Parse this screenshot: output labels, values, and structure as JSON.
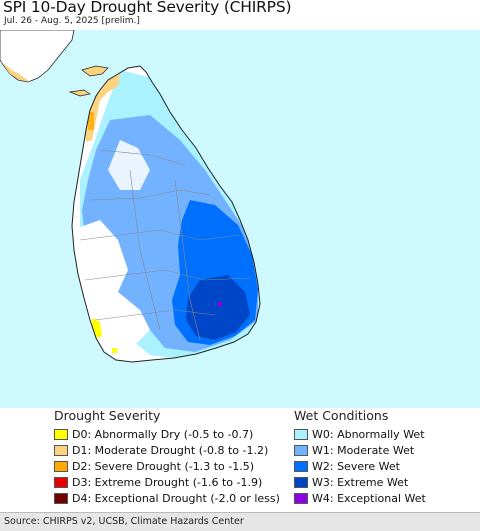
{
  "header": {
    "title": "SPI 10-Day Drought Severity (CHIRPS)",
    "subtitle": "Jul. 26 - Aug. 5, 2025 [prelim.]"
  },
  "map": {
    "region": "Sri Lanka",
    "colors": {
      "water": "#cdf9ff",
      "land_normal": "#ffffff",
      "border": "#333333",
      "district_line": "#888888"
    }
  },
  "legend": {
    "drought": {
      "heading": "Drought Severity",
      "items": [
        {
          "label": "D0: Abnormally Dry (-0.5 to -0.7)",
          "color": "#ffff00"
        },
        {
          "label": "D1: Moderate Drought (-0.8 to -1.2)",
          "color": "#fcd37f"
        },
        {
          "label": "D2: Severe Drought (-1.3 to -1.5)",
          "color": "#ffaa00"
        },
        {
          "label": "D3: Extreme Drought (-1.6 to -1.9)",
          "color": "#e60000"
        },
        {
          "label": "D4: Exceptional Drought (-2.0 or less)",
          "color": "#730000"
        }
      ]
    },
    "wet": {
      "heading": "Wet Conditions",
      "items": [
        {
          "label": "W0: Abnormally Wet",
          "color": "#aaf2ff"
        },
        {
          "label": "W1: Moderate Wet",
          "color": "#73b2ff"
        },
        {
          "label": "W2: Severe Wet",
          "color": "#0070ff"
        },
        {
          "label": "W3: Extreme Wet",
          "color": "#0046c8"
        },
        {
          "label": "W4: Exceptional Wet",
          "color": "#8c00e6"
        }
      ]
    }
  },
  "footer": {
    "source": "Source: CHIRPS v2, UCSB, Climate Hazards Center"
  }
}
